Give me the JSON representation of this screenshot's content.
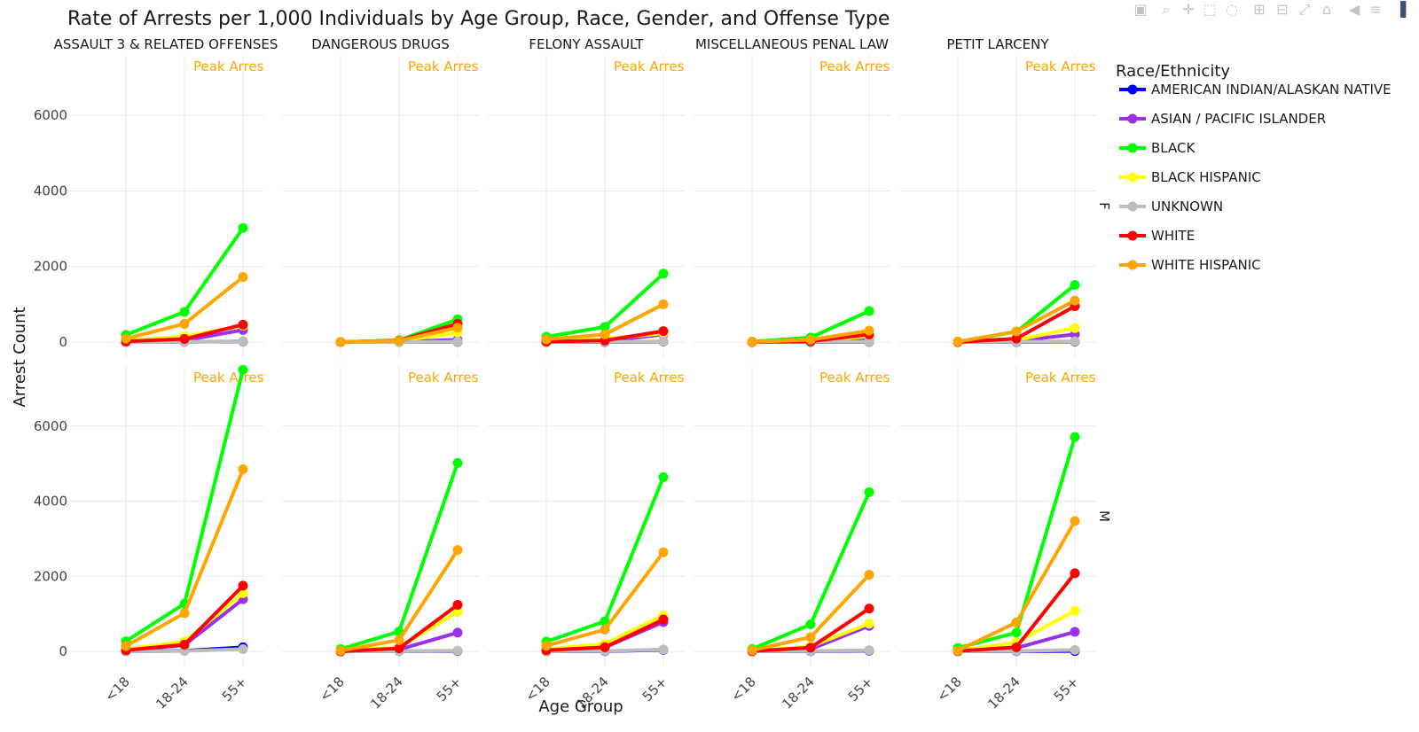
{
  "modebar": {
    "buttons": [
      {
        "name": "camera-icon",
        "glyph": "▣"
      },
      {
        "name": "zoom-icon",
        "glyph": "⌕"
      },
      {
        "name": "pan-icon",
        "glyph": "✛"
      },
      {
        "name": "box-select-icon",
        "glyph": "⬚"
      },
      {
        "name": "lasso-select-icon",
        "glyph": "◌"
      },
      {
        "name": "zoom-in-icon",
        "glyph": "⊞"
      },
      {
        "name": "zoom-out-icon",
        "glyph": "⊟"
      },
      {
        "name": "autoscale-icon",
        "glyph": "⤢"
      },
      {
        "name": "reset-axes-icon",
        "glyph": "⌂"
      },
      {
        "name": "spike-lines-icon",
        "glyph": "◀"
      },
      {
        "name": "compare-hover-icon",
        "glyph": "≡"
      },
      {
        "name": "plotly-logo-icon",
        "glyph": "▐"
      }
    ]
  },
  "colors": {
    "AMERICAN INDIAN/ALASKAN NATIVE": "#0000ff",
    "ASIAN / PACIFIC ISLANDER": "#9b30e8",
    "BLACK": "#00ff00",
    "BLACK HISPANIC": "#ffff00",
    "UNKNOWN": "#bdbdbd",
    "WHITE": "#ff0000",
    "WHITE HISPANIC": "#ffa500",
    "annotation": "#ffa500",
    "grid": "#ebebeb",
    "text": "#2a2a2a"
  },
  "chart_data": {
    "type": "line",
    "title": "Rate of Arrests per 1,000 Individuals by Age Group, Race, Gender, and Offense Type",
    "xlabel": "Age Group",
    "ylabel": "Arrest Count",
    "x": [
      "<18",
      "18-24",
      "55+"
    ],
    "yticks": [
      0,
      2000,
      4000,
      6000
    ],
    "ylim": [
      -400,
      7600
    ],
    "grid": true,
    "legend_title": "Race/Ethnicity",
    "legend_position": "right",
    "offense_types": [
      "ASSAULT 3 & RELATED OFFENSES",
      "DANGEROUS DRUGS",
      "FELONY ASSAULT",
      "MISCELLANEOUS PENAL LAW",
      "PETIT LARCENY"
    ],
    "genders": [
      "F",
      "M"
    ],
    "annotation": "Peak Arrest R",
    "series_names": [
      "AMERICAN INDIAN/ALASKAN NATIVE",
      "ASIAN / PACIFIC ISLANDER",
      "BLACK",
      "BLACK HISPANIC",
      "UNKNOWN",
      "WHITE",
      "WHITE HISPANIC"
    ],
    "panels": [
      {
        "offense": "ASSAULT 3 & RELATED OFFENSES",
        "gender": "F",
        "series": [
          {
            "name": "AMERICAN INDIAN/ALASKAN NATIVE",
            "values": [
              0,
              5,
              15
            ]
          },
          {
            "name": "ASIAN / PACIFIC ISLANDER",
            "values": [
              10,
              40,
              320
            ]
          },
          {
            "name": "BLACK",
            "values": [
              190,
              800,
              3020
            ]
          },
          {
            "name": "BLACK HISPANIC",
            "values": [
              40,
              150,
              430
            ]
          },
          {
            "name": "UNKNOWN",
            "values": [
              0,
              5,
              20
            ]
          },
          {
            "name": "WHITE",
            "values": [
              15,
              80,
              460
            ]
          },
          {
            "name": "WHITE HISPANIC",
            "values": [
              90,
              480,
              1720
            ]
          }
        ]
      },
      {
        "offense": "DANGEROUS DRUGS",
        "gender": "F",
        "series": [
          {
            "name": "AMERICAN INDIAN/ALASKAN NATIVE",
            "values": [
              0,
              0,
              5
            ]
          },
          {
            "name": "ASIAN / PACIFIC ISLANDER",
            "values": [
              0,
              10,
              60
            ]
          },
          {
            "name": "BLACK",
            "values": [
              0,
              50,
              600
            ]
          },
          {
            "name": "BLACK HISPANIC",
            "values": [
              0,
              25,
              250
            ]
          },
          {
            "name": "UNKNOWN",
            "values": [
              0,
              0,
              10
            ]
          },
          {
            "name": "WHITE",
            "values": [
              0,
              40,
              480
            ]
          },
          {
            "name": "WHITE HISPANIC",
            "values": [
              0,
              35,
              380
            ]
          }
        ]
      },
      {
        "offense": "FELONY ASSAULT",
        "gender": "F",
        "series": [
          {
            "name": "AMERICAN INDIAN/ALASKAN NATIVE",
            "values": [
              0,
              0,
              10
            ]
          },
          {
            "name": "ASIAN / PACIFIC ISLANDER",
            "values": [
              5,
              20,
              200
            ]
          },
          {
            "name": "BLACK",
            "values": [
              140,
              400,
              1810
            ]
          },
          {
            "name": "BLACK HISPANIC",
            "values": [
              30,
              80,
              230
            ]
          },
          {
            "name": "UNKNOWN",
            "values": [
              0,
              5,
              15
            ]
          },
          {
            "name": "WHITE",
            "values": [
              10,
              40,
              290
            ]
          },
          {
            "name": "WHITE HISPANIC",
            "values": [
              70,
              200,
              1000
            ]
          }
        ]
      },
      {
        "offense": "MISCELLANEOUS PENAL LAW",
        "gender": "F",
        "series": [
          {
            "name": "AMERICAN INDIAN/ALASKAN NATIVE",
            "values": [
              0,
              0,
              5
            ]
          },
          {
            "name": "ASIAN / PACIFIC ISLANDER",
            "values": [
              0,
              10,
              100
            ]
          },
          {
            "name": "BLACK",
            "values": [
              10,
              120,
              820
            ]
          },
          {
            "name": "BLACK HISPANIC",
            "values": [
              0,
              20,
              150
            ]
          },
          {
            "name": "UNKNOWN",
            "values": [
              0,
              5,
              10
            ]
          },
          {
            "name": "WHITE",
            "values": [
              0,
              20,
              200
            ]
          },
          {
            "name": "WHITE HISPANIC",
            "values": [
              5,
              60,
              300
            ]
          }
        ]
      },
      {
        "offense": "PETIT LARCENY",
        "gender": "F",
        "series": [
          {
            "name": "AMERICAN INDIAN/ALASKAN NATIVE",
            "values": [
              0,
              0,
              10
            ]
          },
          {
            "name": "ASIAN / PACIFIC ISLANDER",
            "values": [
              0,
              30,
              200
            ]
          },
          {
            "name": "BLACK",
            "values": [
              10,
              270,
              1510
            ]
          },
          {
            "name": "BLACK HISPANIC",
            "values": [
              0,
              50,
              370
            ]
          },
          {
            "name": "UNKNOWN",
            "values": [
              0,
              5,
              20
            ]
          },
          {
            "name": "WHITE",
            "values": [
              0,
              90,
              950
            ]
          },
          {
            "name": "WHITE HISPANIC",
            "values": [
              10,
              280,
              1100
            ]
          }
        ]
      },
      {
        "offense": "ASSAULT 3 & RELATED OFFENSES",
        "gender": "M",
        "series": [
          {
            "name": "AMERICAN INDIAN/ALASKAN NATIVE",
            "values": [
              0,
              15,
              110
            ]
          },
          {
            "name": "ASIAN / PACIFIC ISLANDER",
            "values": [
              20,
              170,
              1390
            ]
          },
          {
            "name": "BLACK",
            "values": [
              270,
              1270,
              7500
            ]
          },
          {
            "name": "BLACK HISPANIC",
            "values": [
              60,
              260,
              1550
            ]
          },
          {
            "name": "UNKNOWN",
            "values": [
              0,
              10,
              60
            ]
          },
          {
            "name": "WHITE",
            "values": [
              30,
              180,
              1750
            ]
          },
          {
            "name": "WHITE HISPANIC",
            "values": [
              140,
              1020,
              4850
            ]
          }
        ]
      },
      {
        "offense": "DANGEROUS DRUGS",
        "gender": "M",
        "series": [
          {
            "name": "AMERICAN INDIAN/ALASKAN NATIVE",
            "values": [
              0,
              5,
              10
            ]
          },
          {
            "name": "ASIAN / PACIFIC ISLANDER",
            "values": [
              0,
              50,
              500
            ]
          },
          {
            "name": "BLACK",
            "values": [
              60,
              530,
              5020
            ]
          },
          {
            "name": "BLACK HISPANIC",
            "values": [
              10,
              110,
              1050
            ]
          },
          {
            "name": "UNKNOWN",
            "values": [
              0,
              5,
              20
            ]
          },
          {
            "name": "WHITE",
            "values": [
              0,
              80,
              1240
            ]
          },
          {
            "name": "WHITE HISPANIC",
            "values": [
              20,
              300,
              2700
            ]
          }
        ]
      },
      {
        "offense": "FELONY ASSAULT",
        "gender": "M",
        "series": [
          {
            "name": "AMERICAN INDIAN/ALASKAN NATIVE",
            "values": [
              0,
              5,
              40
            ]
          },
          {
            "name": "ASIAN / PACIFIC ISLANDER",
            "values": [
              10,
              110,
              780
            ]
          },
          {
            "name": "BLACK",
            "values": [
              260,
              800,
              4640
            ]
          },
          {
            "name": "BLACK HISPANIC",
            "values": [
              60,
              200,
              960
            ]
          },
          {
            "name": "UNKNOWN",
            "values": [
              0,
              10,
              50
            ]
          },
          {
            "name": "WHITE",
            "values": [
              30,
              110,
              850
            ]
          },
          {
            "name": "WHITE HISPANIC",
            "values": [
              150,
              580,
              2640
            ]
          }
        ]
      },
      {
        "offense": "MISCELLANEOUS PENAL LAW",
        "gender": "M",
        "series": [
          {
            "name": "AMERICAN INDIAN/ALASKAN NATIVE",
            "values": [
              0,
              5,
              20
            ]
          },
          {
            "name": "ASIAN / PACIFIC ISLANDER",
            "values": [
              0,
              60,
              680
            ]
          },
          {
            "name": "BLACK",
            "values": [
              60,
              720,
              4240
            ]
          },
          {
            "name": "BLACK HISPANIC",
            "values": [
              10,
              130,
              740
            ]
          },
          {
            "name": "UNKNOWN",
            "values": [
              0,
              10,
              30
            ]
          },
          {
            "name": "WHITE",
            "values": [
              10,
              100,
              1140
            ]
          },
          {
            "name": "WHITE HISPANIC",
            "values": [
              30,
              380,
              2040
            ]
          }
        ]
      },
      {
        "offense": "PETIT LARCENY",
        "gender": "M",
        "series": [
          {
            "name": "AMERICAN INDIAN/ALASKAN NATIVE",
            "values": [
              0,
              5,
              10
            ]
          },
          {
            "name": "ASIAN / PACIFIC ISLANDER",
            "values": [
              0,
              90,
              520
            ]
          },
          {
            "name": "BLACK",
            "values": [
              90,
              500,
              5710
            ]
          },
          {
            "name": "BLACK HISPANIC",
            "values": [
              10,
              240,
              1080
            ]
          },
          {
            "name": "UNKNOWN",
            "values": [
              0,
              10,
              40
            ]
          },
          {
            "name": "WHITE",
            "values": [
              10,
              110,
              2080
            ]
          },
          {
            "name": "WHITE HISPANIC",
            "values": [
              20,
              770,
              3470
            ]
          }
        ]
      }
    ]
  }
}
